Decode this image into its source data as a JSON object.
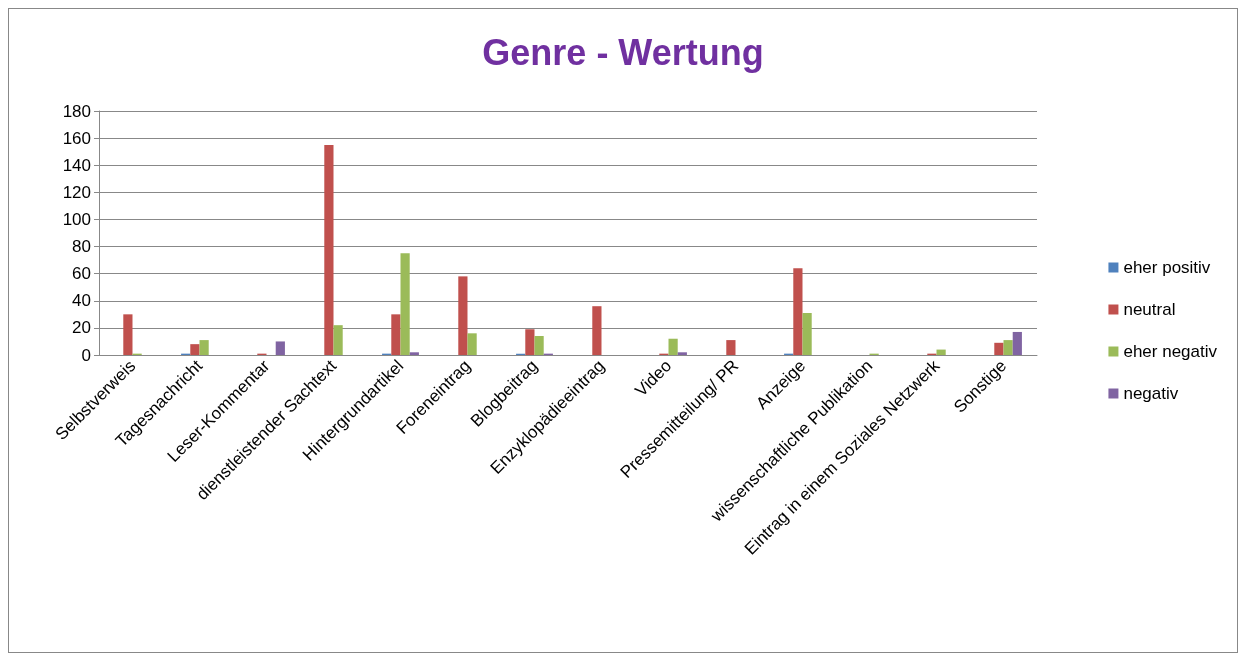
{
  "chart_data": {
    "type": "bar",
    "title": "Genre - Wertung",
    "categories": [
      "Selbstverweis",
      "Tagesnachricht",
      "Leser-Kommentar",
      "dienstleistender Sachtext",
      "Hintergrundartikel",
      "Foreneintrag",
      "Blogbeitrag",
      "Enzyklopädieeintrag",
      "Video",
      "Pressemitteilung/ PR",
      "Anzeige",
      "wissenschaftliche Publikation",
      "Eintrag in einem Soziales Netzwerk",
      "Sonstige"
    ],
    "series": [
      {
        "name": "eher positiv",
        "color": "#4f81bd",
        "values": [
          0,
          1,
          0,
          0,
          1,
          0,
          1,
          0,
          0,
          0,
          1,
          0,
          0,
          0
        ]
      },
      {
        "name": "neutral",
        "color": "#c0504d",
        "values": [
          30,
          8,
          1,
          155,
          30,
          58,
          19,
          36,
          1,
          11,
          64,
          0,
          1,
          9
        ]
      },
      {
        "name": "eher negativ",
        "color": "#9bbb59",
        "values": [
          1,
          11,
          0,
          22,
          75,
          16,
          14,
          0,
          12,
          0,
          31,
          1,
          4,
          11
        ]
      },
      {
        "name": "negativ",
        "color": "#8064a2",
        "values": [
          0,
          0,
          10,
          0,
          2,
          0,
          1,
          0,
          2,
          0,
          0,
          0,
          0,
          17
        ]
      }
    ],
    "ylim": [
      0,
      180
    ],
    "yticks": [
      0,
      20,
      40,
      60,
      80,
      100,
      120,
      140,
      160,
      180
    ],
    "grid": "y",
    "legend": "right"
  }
}
